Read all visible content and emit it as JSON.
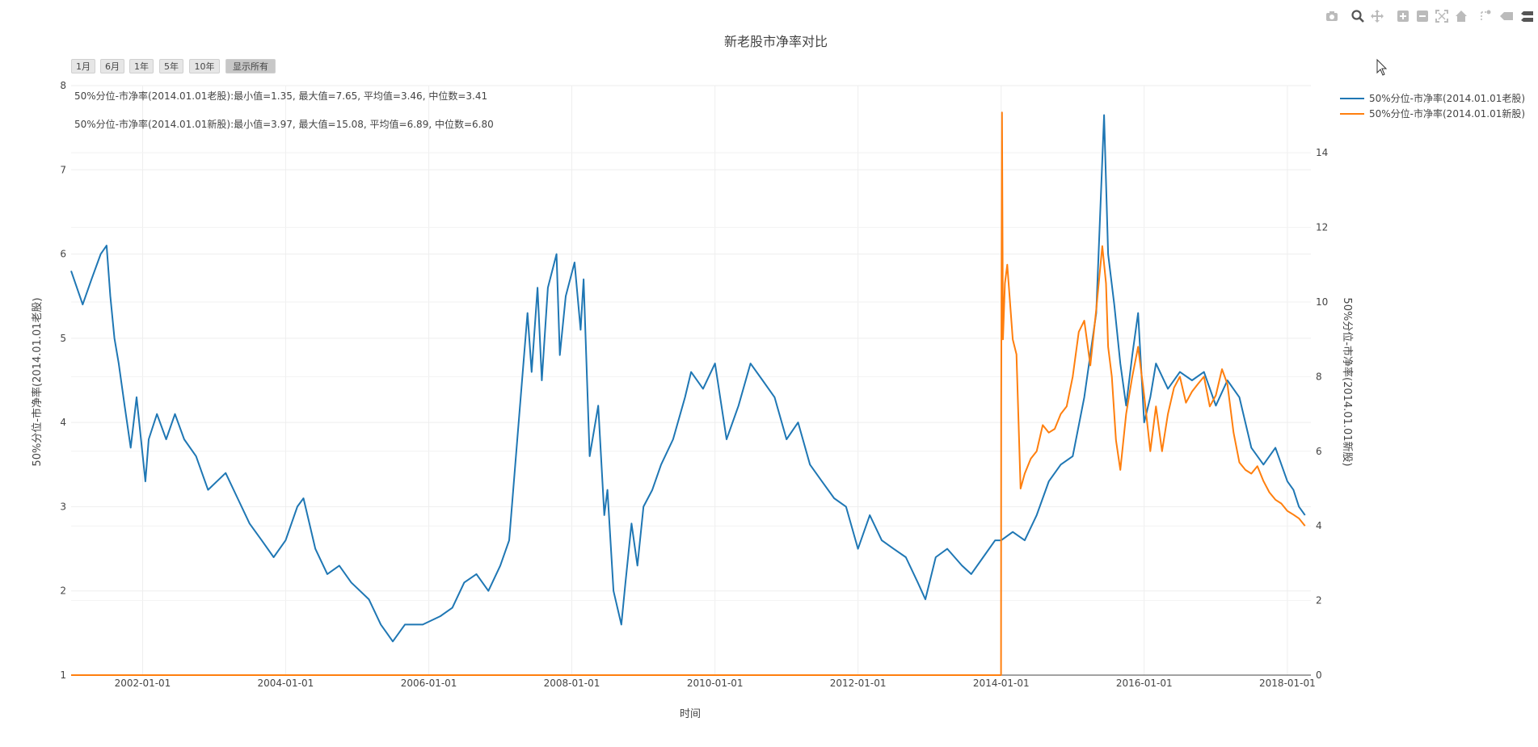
{
  "chart_data": {
    "type": "line",
    "title": "新老股市净率对比",
    "xlabel": "时间",
    "ylabel_left": "50%分位-市净率(2014.01.01老股)",
    "ylabel_right": "50%分位-市净率(2014.01.01新股)",
    "y_left_range": [
      1,
      8
    ],
    "y_left_ticks": [
      1,
      2,
      3,
      4,
      5,
      6,
      7,
      8
    ],
    "y_right_range": [
      0,
      15.8
    ],
    "y_right_ticks": [
      0,
      2,
      4,
      6,
      8,
      10,
      12,
      14
    ],
    "x_range": [
      "2001-01-01",
      "2018-05-01"
    ],
    "x_ticks": [
      "2002-01-01",
      "2004-01-01",
      "2006-01-01",
      "2008-01-01",
      "2010-01-01",
      "2012-01-01",
      "2014-01-01",
      "2016-01-01",
      "2018-01-01"
    ],
    "grid": true,
    "legend_position": "top-right",
    "annotations": [
      "50%分位-市净率(2014.01.01老股):最小值=1.35, 最大值=7.65, 平均值=3.46, 中位数=3.41",
      "50%分位-市净率(2014.01.01新股):最小值=3.97, 最大值=15.08, 平均值=6.89, 中位数=6.80"
    ],
    "series": [
      {
        "name": "50%分位-市净率(2014.01.01老股)",
        "axis": "left",
        "color": "#1f77b4",
        "x": [
          "2001-01-01",
          "2001-03-01",
          "2001-04-15",
          "2001-06-01",
          "2001-07-01",
          "2001-07-20",
          "2001-08-10",
          "2001-09-01",
          "2001-10-01",
          "2001-11-01",
          "2001-12-01",
          "2002-01-15",
          "2002-02-01",
          "2002-03-15",
          "2002-05-01",
          "2002-06-15",
          "2002-08-01",
          "2002-10-01",
          "2002-12-01",
          "2003-03-01",
          "2003-05-01",
          "2003-07-01",
          "2003-09-01",
          "2003-11-01",
          "2004-01-01",
          "2004-03-01",
          "2004-04-01",
          "2004-06-01",
          "2004-08-01",
          "2004-10-01",
          "2004-12-01",
          "2005-03-01",
          "2005-05-01",
          "2005-06-01",
          "2005-07-01",
          "2005-09-01",
          "2005-12-01",
          "2006-03-01",
          "2006-05-01",
          "2006-07-01",
          "2006-09-01",
          "2006-11-01",
          "2007-01-01",
          "2007-02-15",
          "2007-04-01",
          "2007-05-20",
          "2007-06-10",
          "2007-07-10",
          "2007-08-01",
          "2007-09-01",
          "2007-10-15",
          "2007-11-01",
          "2007-12-01",
          "2008-01-15",
          "2008-02-15",
          "2008-03-01",
          "2008-04-01",
          "2008-05-15",
          "2008-06-15",
          "2008-07-01",
          "2008-08-01",
          "2008-09-10",
          "2008-10-01",
          "2008-11-01",
          "2008-12-01",
          "2009-01-01",
          "2009-02-15",
          "2009-04-01",
          "2009-06-01",
          "2009-08-01",
          "2009-09-01",
          "2009-11-01",
          "2010-01-01",
          "2010-03-01",
          "2010-05-01",
          "2010-07-01",
          "2010-09-01",
          "2010-11-01",
          "2011-01-01",
          "2011-03-01",
          "2011-05-01",
          "2011-07-01",
          "2011-09-01",
          "2011-11-01",
          "2012-01-01",
          "2012-03-01",
          "2012-05-01",
          "2012-07-01",
          "2012-09-01",
          "2012-11-01",
          "2012-12-10",
          "2013-02-01",
          "2013-04-01",
          "2013-06-15",
          "2013-08-01",
          "2013-10-01",
          "2013-12-01",
          "2014-01-01",
          "2014-03-01",
          "2014-05-01",
          "2014-07-01",
          "2014-09-01",
          "2014-11-01",
          "2015-01-01",
          "2015-03-01",
          "2015-05-01",
          "2015-06-10",
          "2015-07-01",
          "2015-08-01",
          "2015-09-01",
          "2015-10-01",
          "2015-11-01",
          "2015-12-01",
          "2016-01-01",
          "2016-02-01",
          "2016-03-01",
          "2016-05-01",
          "2016-07-01",
          "2016-09-01",
          "2016-11-01",
          "2017-01-01",
          "2017-03-01",
          "2017-05-01",
          "2017-07-01",
          "2017-09-01",
          "2017-11-01",
          "2018-01-01",
          "2018-02-01",
          "2018-03-01",
          "2018-04-01"
        ],
        "y": [
          5.8,
          5.4,
          5.7,
          6.0,
          6.1,
          5.5,
          5.0,
          4.7,
          4.2,
          3.7,
          4.3,
          3.3,
          3.8,
          4.1,
          3.8,
          4.1,
          3.8,
          3.6,
          3.2,
          3.4,
          3.1,
          2.8,
          2.6,
          2.4,
          2.6,
          3.0,
          3.1,
          2.5,
          2.2,
          2.3,
          2.1,
          1.9,
          1.6,
          1.5,
          1.4,
          1.6,
          1.6,
          1.7,
          1.8,
          2.1,
          2.2,
          2.0,
          2.3,
          2.6,
          3.9,
          5.3,
          4.6,
          5.6,
          4.5,
          5.6,
          6.0,
          4.8,
          5.5,
          5.9,
          5.1,
          5.7,
          3.6,
          4.2,
          2.9,
          3.2,
          2.0,
          1.6,
          2.1,
          2.8,
          2.3,
          3.0,
          3.2,
          3.5,
          3.8,
          4.3,
          4.6,
          4.4,
          4.7,
          3.8,
          4.2,
          4.7,
          4.5,
          4.3,
          3.8,
          4.0,
          3.5,
          3.3,
          3.1,
          3.0,
          2.5,
          2.9,
          2.6,
          2.5,
          2.4,
          2.1,
          1.9,
          2.4,
          2.5,
          2.3,
          2.2,
          2.4,
          2.6,
          2.6,
          2.7,
          2.6,
          2.9,
          3.3,
          3.5,
          3.6,
          4.3,
          5.3,
          7.65,
          6.0,
          5.4,
          4.7,
          4.2,
          4.8,
          5.3,
          4.0,
          4.3,
          4.7,
          4.4,
          4.6,
          4.5,
          4.6,
          4.2,
          4.5,
          4.3,
          3.7,
          3.5,
          3.7,
          3.3,
          3.2,
          3.0,
          2.9
        ]
      },
      {
        "name": "50%分位-市净率(2014.01.01新股)",
        "axis": "right",
        "color": "#ff7f0e",
        "x": [
          "2001-01-01",
          "2013-12-31",
          "2014-01-01",
          "2014-01-05",
          "2014-01-10",
          "2014-01-20",
          "2014-02-01",
          "2014-02-15",
          "2014-03-01",
          "2014-03-20",
          "2014-04-10",
          "2014-05-01",
          "2014-06-01",
          "2014-07-01",
          "2014-08-01",
          "2014-09-01",
          "2014-10-01",
          "2014-11-01",
          "2014-12-01",
          "2015-01-01",
          "2015-02-01",
          "2015-03-01",
          "2015-04-01",
          "2015-05-01",
          "2015-06-01",
          "2015-06-20",
          "2015-07-01",
          "2015-07-20",
          "2015-08-10",
          "2015-09-01",
          "2015-10-01",
          "2015-11-01",
          "2015-12-01",
          "2016-01-01",
          "2016-02-01",
          "2016-03-01",
          "2016-04-01",
          "2016-05-01",
          "2016-06-01",
          "2016-07-01",
          "2016-08-01",
          "2016-09-01",
          "2016-10-01",
          "2016-11-01",
          "2016-12-01",
          "2017-01-01",
          "2017-02-01",
          "2017-03-01",
          "2017-04-01",
          "2017-05-01",
          "2017-06-01",
          "2017-07-01",
          "2017-08-01",
          "2017-09-01",
          "2017-10-01",
          "2017-11-01",
          "2017-12-01",
          "2018-01-01",
          "2018-02-01",
          "2018-03-01",
          "2018-04-01"
        ],
        "y": [
          0,
          0,
          7.3,
          15.08,
          9.0,
          10.5,
          11.0,
          10.0,
          9.0,
          8.6,
          5.0,
          5.4,
          5.8,
          6.0,
          6.7,
          6.5,
          6.6,
          7.0,
          7.2,
          8.0,
          9.2,
          9.5,
          8.3,
          9.8,
          11.5,
          10.5,
          8.8,
          8.0,
          6.3,
          5.5,
          7.0,
          8.0,
          8.8,
          7.5,
          6.0,
          7.2,
          6.0,
          7.0,
          7.7,
          8.0,
          7.3,
          7.6,
          7.8,
          8.0,
          7.2,
          7.5,
          8.2,
          7.8,
          6.5,
          5.7,
          5.5,
          5.4,
          5.6,
          5.2,
          4.9,
          4.7,
          4.6,
          4.4,
          4.3,
          4.2,
          4.0
        ]
      }
    ]
  },
  "range_buttons": [
    "1月",
    "6月",
    "1年",
    "5年",
    "10年",
    "显示所有"
  ],
  "range_selected": "显示所有",
  "modebar_icons": [
    "camera-icon",
    "zoom-icon",
    "pan-icon",
    "zoom-in-icon",
    "zoom-out-icon",
    "autoscale-icon",
    "home-icon",
    "spike-lines-icon",
    "hover-closest-icon",
    "hover-compare-icon"
  ]
}
